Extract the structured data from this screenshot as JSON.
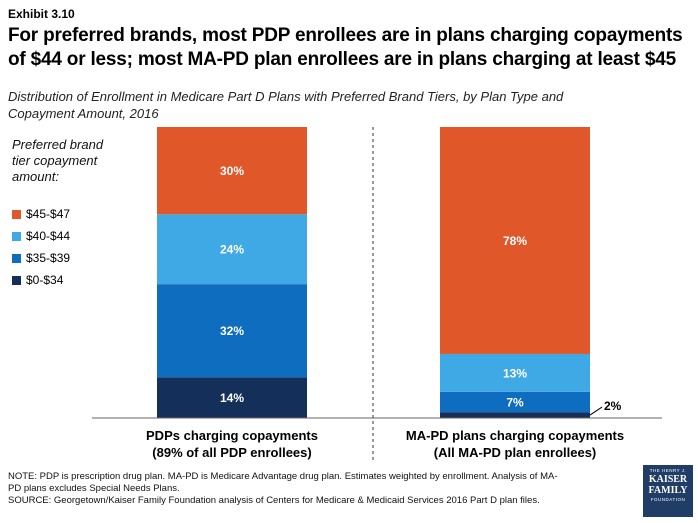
{
  "exhibit": "Exhibit 3.10",
  "title_line1": "For preferred brands, most PDP enrollees are in plans charging copayments",
  "title_line2": "of $44 or less; most MA-PD plan enrollees are in plans charging at least $45",
  "subtitle_line1": "Distribution of Enrollment in Medicare Part D Plans with Preferred Brand Tiers, by Plan Type and",
  "subtitle_line2": "Copayment Amount, 2016",
  "legend_title_line1": "Preferred brand",
  "legend_title_line2": "tier copayment",
  "legend_title_line3": "amount:",
  "colors": {
    "orange": "#e0572a",
    "light_blue": "#3fa9e6",
    "mid_blue": "#0e6dbf",
    "navy": "#14305a"
  },
  "chart_data": {
    "type": "bar",
    "stacked": true,
    "categories": [
      [
        "PDPs charging copayments",
        "(89% of all PDP enrollees)"
      ],
      [
        "MA-PD plans charging copayments",
        "(All MA-PD plan enrollees)"
      ]
    ],
    "series": [
      {
        "name": "$0-$34",
        "color": "#14305a",
        "values": [
          14,
          2
        ],
        "labels": [
          "14%",
          "2%"
        ]
      },
      {
        "name": "$35-$39",
        "color": "#0e6dbf",
        "values": [
          32,
          7
        ],
        "labels": [
          "32%",
          "7%"
        ]
      },
      {
        "name": "$40-$44",
        "color": "#3fa9e6",
        "values": [
          24,
          13
        ],
        "labels": [
          "24%",
          "13%"
        ]
      },
      {
        "name": "$45-$47",
        "color": "#e0572a",
        "values": [
          30,
          78
        ],
        "labels": [
          "30%",
          "78%"
        ]
      }
    ],
    "ylim": [
      0,
      100
    ],
    "legend_order": [
      "$45-$47",
      "$40-$44",
      "$35-$39",
      "$0-$34"
    ]
  },
  "footnote_line1": "NOTE: PDP is prescription drug plan. MA-PD is Medicare Advantage drug plan. Estimates weighted by enrollment. Analysis of MA-",
  "footnote_line2": "PD plans excludes Special Needs Plans.",
  "footnote_line3": "SOURCE: Georgetown/Kaiser Family Foundation analysis of Centers for Medicare & Medicaid Services 2016 Part D plan files.",
  "logo": {
    "top": "THE HENRY J.",
    "line1": "KAISER",
    "line2": "FAMILY",
    "bottom": "FOUNDATION"
  }
}
